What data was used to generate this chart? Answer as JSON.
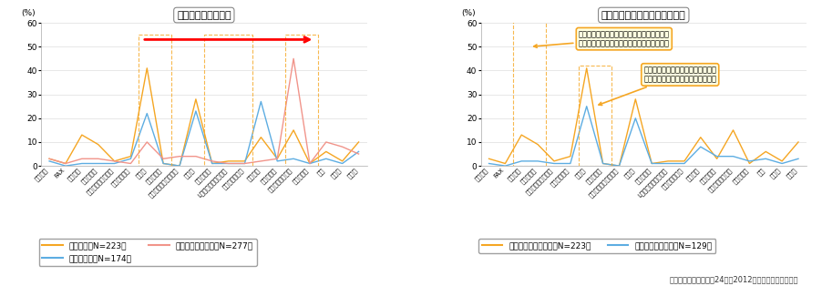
{
  "categories": [
    "固定電話",
    "FAX",
    "携帯通話",
    "携帯メール",
    "携帯インターネット",
    "携帯ワンセグ",
    "ラジオ",
    "カーラジオ",
    "インターネットラジオ",
    "テレビ",
    "カーテレビ",
    "L字放送・データ放送",
    "インターネット",
    "防災無線",
    "災害伝言板",
    "近锈住民の口コミ",
    "防災メール",
    "目視",
    "広報車",
    "その他"
  ],
  "left_title": "情報収集手段の変化",
  "right_title": "発災直後の情報収集手段と評価",
  "ylabel": "(%)",
  "ylim": [
    0,
    60
  ],
  "yticks": [
    0,
    10,
    20,
    30,
    40,
    50,
    60
  ],
  "left_series_order": [
    "発災直後（N=223）",
    "津波の情報（N=174）",
    "避難後の生活情報（N=277）"
  ],
  "left_series": {
    "発災直後（N=223）": {
      "color": "#F5A623",
      "values": [
        3,
        1,
        13,
        9,
        2,
        4,
        41,
        1,
        0,
        28,
        1,
        2,
        2,
        12,
        3,
        15,
        1,
        6,
        2,
        10
      ]
    },
    "津波の情報（N=174）": {
      "color": "#5DADE2",
      "values": [
        2,
        0,
        1,
        1,
        1,
        3,
        22,
        1,
        0,
        23,
        1,
        1,
        1,
        27,
        2,
        3,
        1,
        3,
        1,
        6
      ]
    },
    "避難後の生活情報（N=277）": {
      "color": "#F1948A",
      "values": [
        3,
        1,
        3,
        3,
        2,
        1,
        10,
        3,
        4,
        4,
        2,
        1,
        1,
        2,
        3,
        45,
        1,
        10,
        8,
        5
      ]
    }
  },
  "right_series_order": [
    "実際に利用した手段（N=223）",
    "最も役立った手段（N=129）"
  ],
  "right_series": {
    "実際に利用した手段（N=223）": {
      "color": "#F5A623",
      "values": [
        3,
        1,
        13,
        9,
        2,
        4,
        41,
        1,
        0,
        28,
        1,
        2,
        2,
        12,
        3,
        15,
        1,
        6,
        2,
        10
      ]
    },
    "最も役立った手段（N=129）": {
      "color": "#5DADE2",
      "values": [
        1,
        0,
        2,
        2,
        1,
        1,
        25,
        1,
        0,
        20,
        1,
        1,
        1,
        8,
        4,
        4,
        2,
        3,
        1,
        3
      ]
    }
  },
  "annotation1_text": "携帯電話は無線なので災害の時こそ使えると\n思っていたが、全く使えずショックだった。",
  "annotation2_text": "ラジオは情報を手に入れられたが、\n細かい情報まで入ってこなかった。",
  "source_text": "（出典）総務省「平成24年（2012年）版情報通信白書」",
  "bg_color": "#ffffff",
  "grid_color": "#dddddd",
  "spine_color": "#aaaaaa"
}
